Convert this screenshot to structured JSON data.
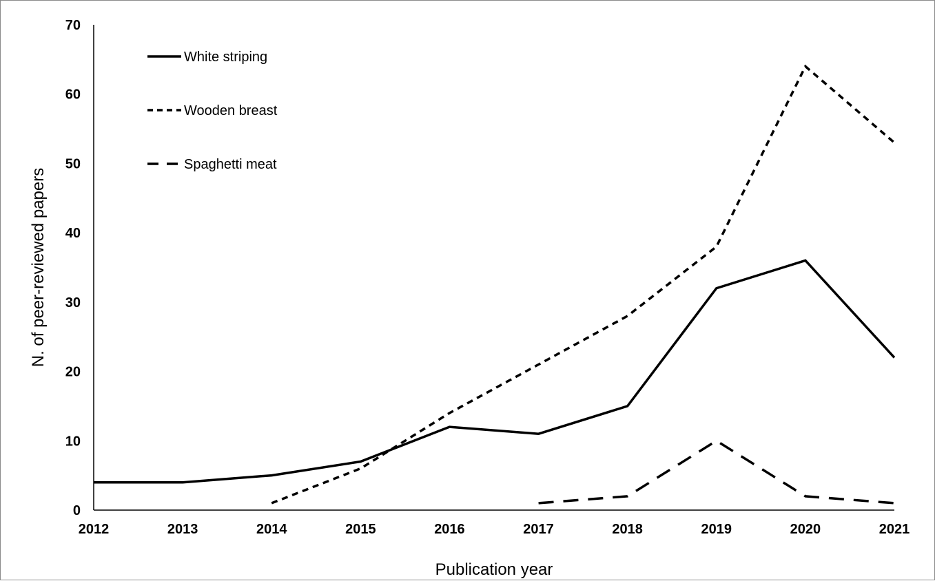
{
  "chart_data": {
    "type": "line",
    "title": "",
    "xlabel": "Publication year",
    "ylabel": "N. of peer-reviewed papers",
    "categories": [
      "2012",
      "2013",
      "2014",
      "2015",
      "2016",
      "2017",
      "2018",
      "2019",
      "2020",
      "2021"
    ],
    "ylim": [
      0,
      70
    ],
    "yticks": [
      0,
      10,
      20,
      30,
      40,
      50,
      60,
      70
    ],
    "grid": false,
    "legend_position": "top-left",
    "series": [
      {
        "name": "White striping",
        "style": "solid",
        "color": "#000000",
        "values": [
          4,
          4,
          5,
          7,
          12,
          11,
          15,
          32,
          36,
          22
        ]
      },
      {
        "name": "Wooden breast",
        "style": "short-dash",
        "color": "#000000",
        "values": [
          null,
          null,
          1,
          6,
          14,
          21,
          28,
          38,
          64,
          53
        ]
      },
      {
        "name": "Spaghetti meat",
        "style": "long-dash",
        "color": "#000000",
        "values": [
          null,
          null,
          null,
          null,
          null,
          1,
          2,
          10,
          2,
          1
        ]
      }
    ]
  }
}
